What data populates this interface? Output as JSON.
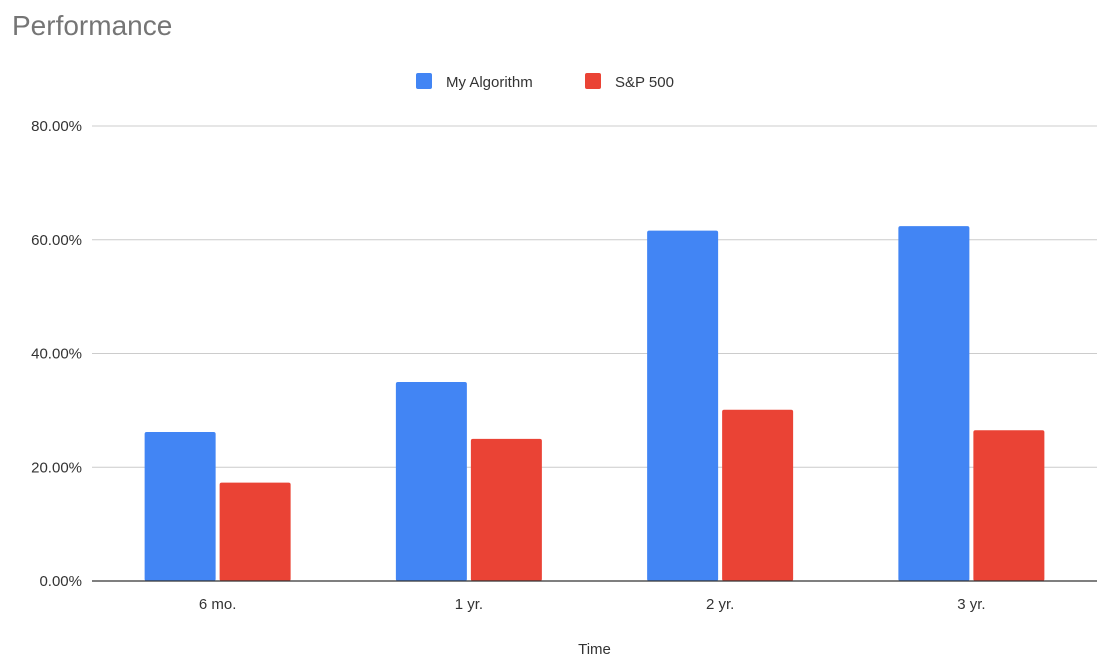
{
  "chart_data": {
    "type": "bar",
    "title": "Performance",
    "xlabel": "Time",
    "ylabel": "",
    "categories": [
      "6 mo.",
      "1 yr.",
      "2 yr.",
      "3 yr."
    ],
    "series": [
      {
        "name": "My Algorithm",
        "color": "#4285F4",
        "values": [
          26.2,
          35.0,
          61.6,
          62.4
        ]
      },
      {
        "name": "S&P 500",
        "color": "#EA4335",
        "values": [
          17.3,
          25.0,
          30.1,
          26.5
        ]
      }
    ],
    "ylim": [
      0,
      80
    ],
    "yticks": [
      0,
      20,
      40,
      60,
      80
    ],
    "ytick_labels": [
      "0.00%",
      "20.00%",
      "40.00%",
      "60.00%",
      "80.00%"
    ],
    "grid": true,
    "legend_position": "top"
  }
}
